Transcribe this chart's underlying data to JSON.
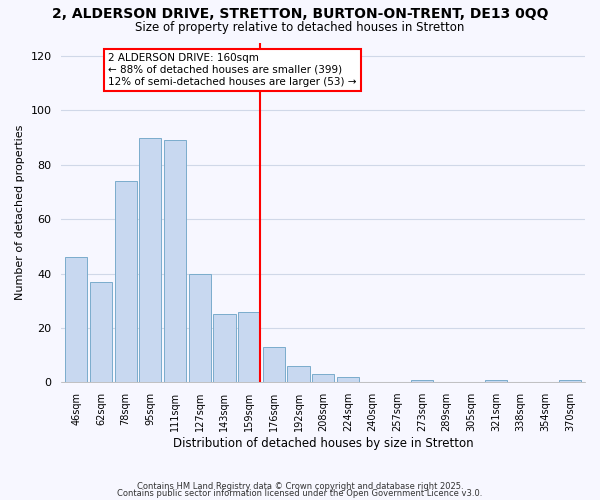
{
  "title": "2, ALDERSON DRIVE, STRETTON, BURTON-ON-TRENT, DE13 0QQ",
  "subtitle": "Size of property relative to detached houses in Stretton",
  "xlabel": "Distribution of detached houses by size in Stretton",
  "ylabel": "Number of detached properties",
  "bar_labels": [
    "46sqm",
    "62sqm",
    "78sqm",
    "95sqm",
    "111sqm",
    "127sqm",
    "143sqm",
    "159sqm",
    "176sqm",
    "192sqm",
    "208sqm",
    "224sqm",
    "240sqm",
    "257sqm",
    "273sqm",
    "289sqm",
    "305sqm",
    "321sqm",
    "338sqm",
    "354sqm",
    "370sqm"
  ],
  "bar_values": [
    46,
    37,
    74,
    90,
    89,
    40,
    25,
    26,
    13,
    6,
    3,
    2,
    0,
    0,
    1,
    0,
    0,
    1,
    0,
    0,
    1
  ],
  "bar_color": "#c8d8f0",
  "bar_edge_color": "#7aaccc",
  "ref_bar_index": 7,
  "ref_line_color": "red",
  "annotation_title": "2 ALDERSON DRIVE: 160sqm",
  "annotation_line1": "← 88% of detached houses are smaller (399)",
  "annotation_line2": "12% of semi-detached houses are larger (53) →",
  "ylim": [
    0,
    125
  ],
  "yticks": [
    0,
    20,
    40,
    60,
    80,
    100,
    120
  ],
  "footer1": "Contains HM Land Registry data © Crown copyright and database right 2025.",
  "footer2": "Contains public sector information licensed under the Open Government Licence v3.0.",
  "bg_color": "#f7f7ff",
  "grid_color": "#d0d8e8"
}
